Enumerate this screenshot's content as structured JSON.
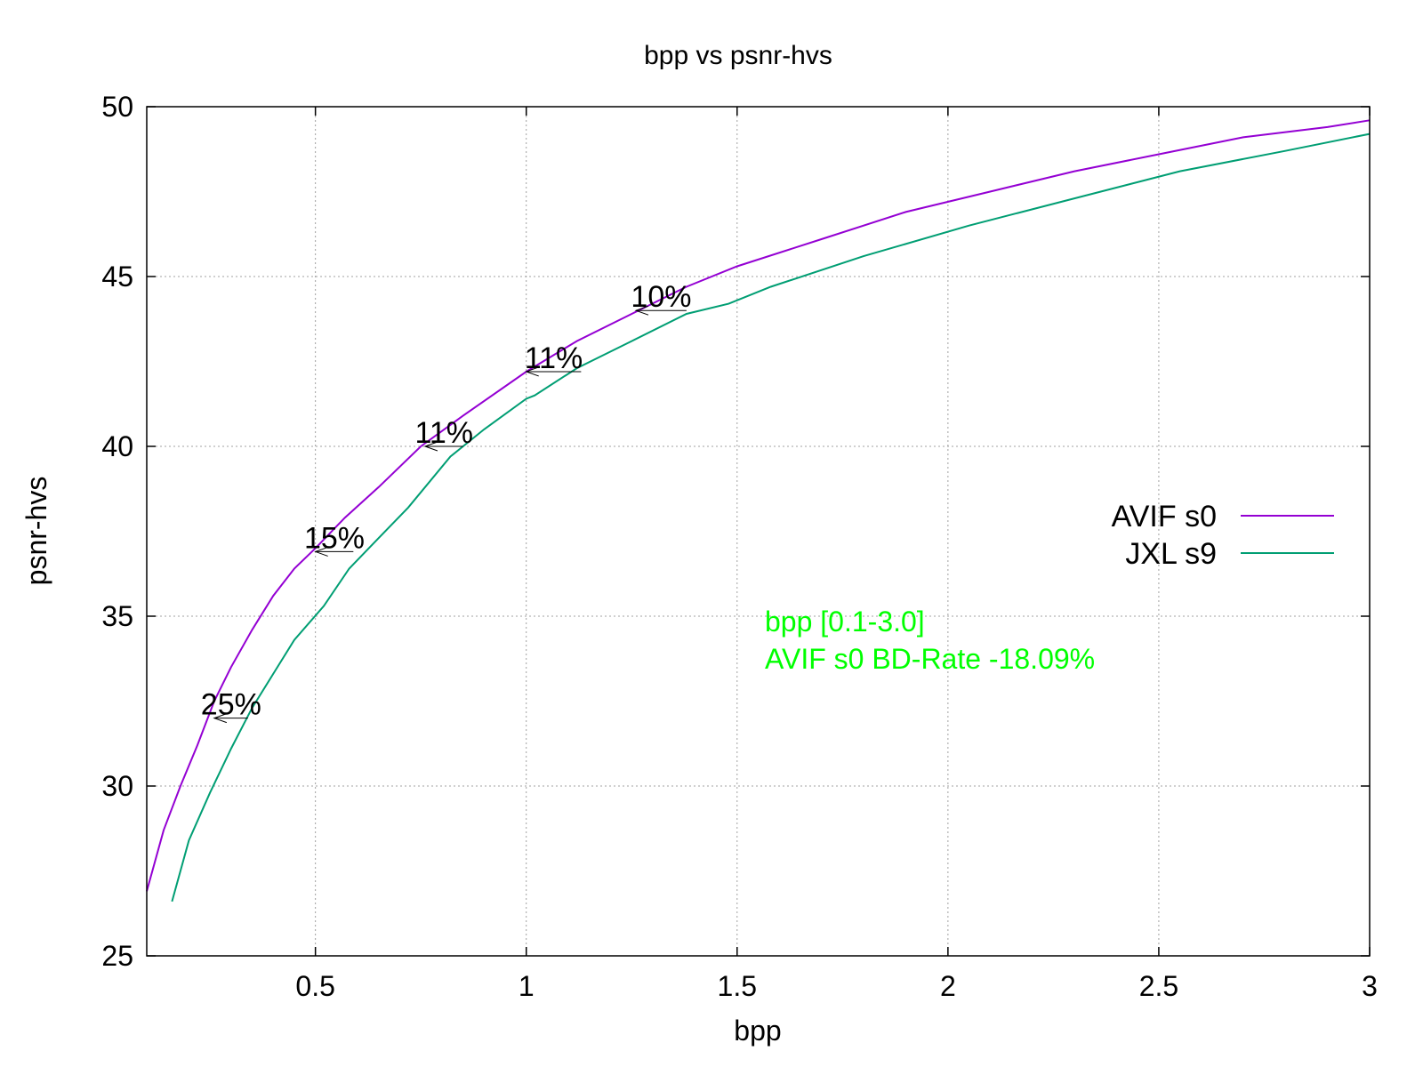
{
  "chart_data": {
    "type": "line",
    "title": "bpp vs psnr-hvs",
    "xlabel": "bpp",
    "ylabel": "psnr-hvs",
    "xlim": [
      0.1,
      3.0
    ],
    "ylim": [
      25,
      50
    ],
    "xticks": [
      0.5,
      1,
      1.5,
      2,
      2.5,
      3
    ],
    "xtick_labels": [
      "0.5",
      "1",
      "1.5",
      "2",
      "2.5",
      "3"
    ],
    "yticks": [
      25,
      30,
      35,
      40,
      45,
      50
    ],
    "ytick_labels": [
      "25",
      "30",
      "35",
      "40",
      "45",
      "50"
    ],
    "grid": true,
    "legend_position": "right",
    "series": [
      {
        "name": "AVIF s0",
        "color": "#9400d3",
        "points": [
          [
            0.1,
            26.9
          ],
          [
            0.14,
            28.7
          ],
          [
            0.18,
            30.0
          ],
          [
            0.22,
            31.2
          ],
          [
            0.26,
            32.5
          ],
          [
            0.3,
            33.5
          ],
          [
            0.35,
            34.6
          ],
          [
            0.4,
            35.6
          ],
          [
            0.45,
            36.4
          ],
          [
            0.5,
            37.0
          ],
          [
            0.57,
            37.9
          ],
          [
            0.65,
            38.8
          ],
          [
            0.75,
            40.0
          ],
          [
            0.85,
            40.9
          ],
          [
            1.0,
            42.2
          ],
          [
            1.12,
            43.1
          ],
          [
            1.25,
            43.9
          ],
          [
            1.38,
            44.7
          ],
          [
            1.5,
            45.3
          ],
          [
            1.7,
            46.1
          ],
          [
            1.9,
            46.9
          ],
          [
            2.1,
            47.5
          ],
          [
            2.3,
            48.1
          ],
          [
            2.5,
            48.6
          ],
          [
            2.7,
            49.1
          ],
          [
            2.9,
            49.4
          ],
          [
            3.0,
            49.6
          ]
        ]
      },
      {
        "name": "JXL s9",
        "color": "#009e73",
        "points": [
          [
            0.16,
            26.6
          ],
          [
            0.2,
            28.4
          ],
          [
            0.25,
            29.8
          ],
          [
            0.3,
            31.1
          ],
          [
            0.35,
            32.3
          ],
          [
            0.4,
            33.3
          ],
          [
            0.45,
            34.3
          ],
          [
            0.52,
            35.3
          ],
          [
            0.58,
            36.4
          ],
          [
            0.65,
            37.3
          ],
          [
            0.72,
            38.2
          ],
          [
            0.82,
            39.7
          ],
          [
            0.9,
            40.5
          ],
          [
            1.0,
            41.4
          ],
          [
            1.02,
            41.5
          ],
          [
            1.12,
            42.3
          ],
          [
            1.25,
            43.1
          ],
          [
            1.38,
            43.9
          ],
          [
            1.48,
            44.2
          ],
          [
            1.58,
            44.7
          ],
          [
            1.8,
            45.6
          ],
          [
            2.05,
            46.5
          ],
          [
            2.3,
            47.3
          ],
          [
            2.55,
            48.1
          ],
          [
            2.8,
            48.7
          ],
          [
            3.0,
            49.2
          ]
        ]
      }
    ],
    "annotations": [
      {
        "text": "25%",
        "y": 32.0,
        "x_tail": 0.34,
        "x_head": 0.26
      },
      {
        "text": "15%",
        "y": 36.9,
        "x_tail": 0.59,
        "x_head": 0.5
      },
      {
        "text": "11%",
        "y": 40.0,
        "x_tail": 0.85,
        "x_head": 0.76
      },
      {
        "text": "11%",
        "y": 42.2,
        "x_tail": 1.13,
        "x_head": 1.0
      },
      {
        "text": "10%",
        "y": 44.0,
        "x_tail": 1.38,
        "x_head": 1.26
      }
    ],
    "note_color": "#00ff00",
    "note_lines": [
      "bpp [0.1-3.0]",
      "AVIF s0 BD-Rate -18.09%"
    ]
  }
}
